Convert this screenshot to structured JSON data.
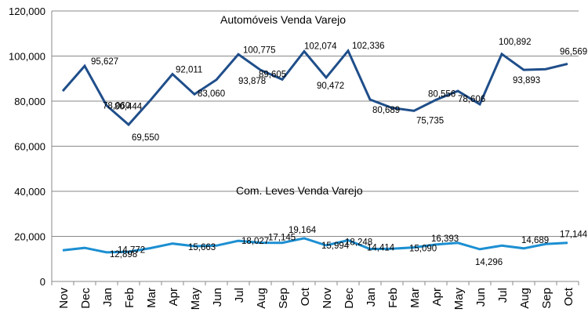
{
  "chart_data": {
    "type": "line",
    "categories": [
      "Nov",
      "Dec",
      "Jan",
      "Feb",
      "Mar",
      "Apr",
      "May",
      "Jun",
      "Jul",
      "Aug",
      "Sep",
      "Oct",
      "Nov",
      "Dec",
      "Jan",
      "Feb",
      "Mar",
      "Apr",
      "May",
      "Jun",
      "Jul",
      "Aug",
      "Sep",
      "Oct"
    ],
    "ylim": [
      0,
      120000
    ],
    "yticks": [
      "0",
      "20,000",
      "40,000",
      "60,000",
      "80,000",
      "100,000",
      "120,000"
    ],
    "grid": true,
    "series": [
      {
        "name": "Automóveis Venda Varejo",
        "color": "#1F4E8A",
        "values": [
          84500,
          95627,
          78060,
          69550,
          80444,
          92011,
          83060,
          89500,
          100775,
          93878,
          89605,
          102074,
          90472,
          102336,
          80689,
          77000,
          75735,
          80556,
          84500,
          78606,
          100892,
          93893,
          94200,
          96569
        ],
        "labels": [
          "",
          "95,627",
          "78,060",
          "69,550",
          "80,444",
          "92,011",
          "83,060",
          "",
          "100,775",
          "93,878",
          "89,605",
          "102,074",
          "90,472",
          "102,336",
          "80,689",
          "",
          "75,735",
          "80,556",
          "",
          "78,606",
          "100,892",
          "93,893",
          "",
          "96,569"
        ]
      },
      {
        "name": "Com. Leves Venda Varejo",
        "color": "#1C8FD2",
        "values": [
          13800,
          14900,
          12898,
          13200,
          14772,
          16800,
          15663,
          15900,
          18027,
          17200,
          17145,
          19164,
          15994,
          18248,
          14414,
          14500,
          15090,
          16393,
          17100,
          14296,
          15900,
          14689,
          16600,
          17144
        ],
        "labels": [
          "",
          "",
          "12,898",
          "",
          "14,772",
          "",
          "15,663",
          "",
          "18,027",
          "",
          "17,145",
          "19,164",
          "15,994",
          "18,248",
          "14,414",
          "",
          "15,090",
          "16,393",
          "",
          "14,296",
          "",
          "14,689",
          "",
          "17,144"
        ]
      }
    ]
  }
}
